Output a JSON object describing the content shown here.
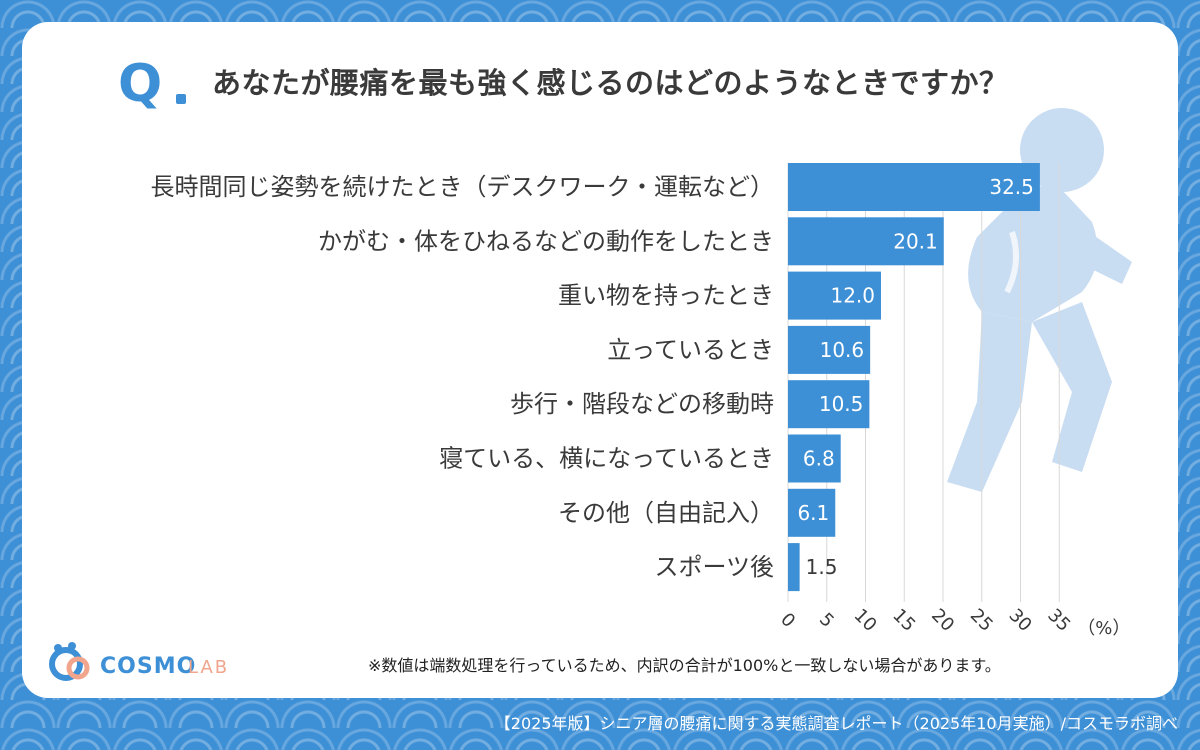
{
  "question": {
    "q_mark": "Q",
    "text": "あなたが腰痛を最も強く感じるのはどのようなときですか？"
  },
  "chart_data": {
    "type": "bar",
    "orientation": "horizontal",
    "categories": [
      "長時間同じ姿勢を続けたとき（デスクワーク・運転など）",
      "かがむ・体をひねるなどの動作をしたとき",
      "重い物を持ったとき",
      "立っているとき",
      "歩行・階段などの移動時",
      "寝ている、横になっているとき",
      "その他（自由記入）",
      "スポーツ後"
    ],
    "values": [
      32.5,
      20.1,
      12.0,
      10.6,
      10.5,
      6.8,
      6.1,
      1.5
    ],
    "value_labels": [
      "32.5",
      "20.1",
      "12.0",
      "10.6",
      "10.5",
      "6.8",
      "6.1",
      "1.5"
    ],
    "xticks": [
      "0",
      "5",
      "10",
      "15",
      "20",
      "25",
      "30",
      "35"
    ],
    "xunit": "（%）",
    "xlim": [
      0,
      35
    ],
    "bar_color": "#3d8fd6",
    "grid": true
  },
  "note": "※数値は端数処理を行っているため、内訳の合計が100%と一致しない場合があります。",
  "logo": {
    "brand": "COSMO",
    "sub": "LAB"
  },
  "footer": "【2025年版】シニア層の腰痛に関する実態調査レポート（2025年10月実施）/コスモラボ調べ",
  "colors": {
    "background": "#3d8fd6",
    "card": "#ffffff",
    "bar": "#3d8fd6",
    "text": "#3a3a3a",
    "figure": "#c7dcf3"
  }
}
